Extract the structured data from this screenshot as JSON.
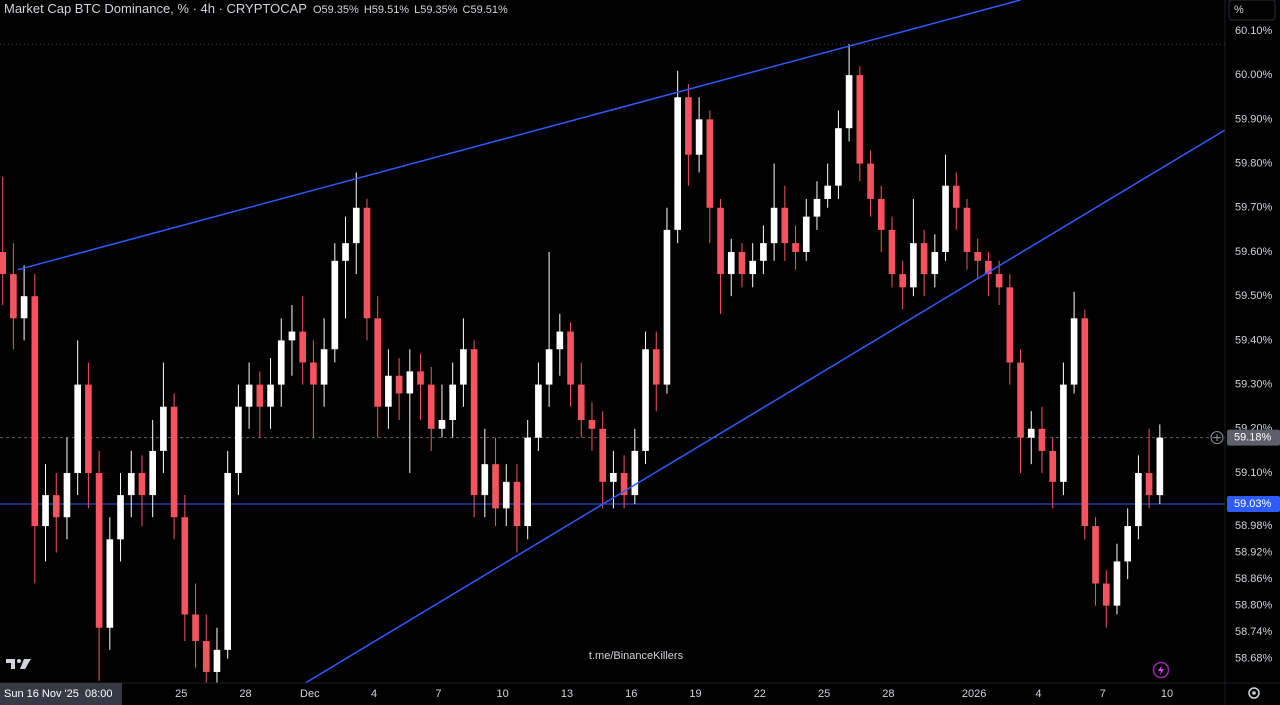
{
  "header": {
    "title": "Market Cap BTC Dominance, % · 4h · CRYPTOCAP",
    "ohlc": [
      {
        "label": "O",
        "value": "59.35%"
      },
      {
        "label": "H",
        "value": "59.51%"
      },
      {
        "label": "L",
        "value": "59.35%"
      },
      {
        "label": "C",
        "value": "59.51%"
      }
    ]
  },
  "scale_button": "%",
  "watermark": "t.me/BinanceKillers",
  "time_label": "Sun 16 Nov '25  08:00",
  "chart_data": {
    "type": "candlestick",
    "up_color": "#ffffff",
    "down_color": "#f7525f",
    "xlim": [
      "2025-11-16T13:00",
      "2026-01-12T17:00"
    ],
    "ylim": [
      58.625,
      60.17
    ],
    "yticks": [
      {
        "value": 60.1,
        "label": "60.10%"
      },
      {
        "value": 60.0,
        "label": "60.00%"
      },
      {
        "value": 59.9,
        "label": "59.90%"
      },
      {
        "value": 59.8,
        "label": "59.80%"
      },
      {
        "value": 59.7,
        "label": "59.70%"
      },
      {
        "value": 59.6,
        "label": "59.60%"
      },
      {
        "value": 59.5,
        "label": "59.50%"
      },
      {
        "value": 59.4,
        "label": "59.40%"
      },
      {
        "value": 59.3,
        "label": "59.30%"
      },
      {
        "value": 59.2,
        "label": "59.20%"
      },
      {
        "value": 59.1,
        "label": "59.10%"
      },
      {
        "value": 58.98,
        "label": "58.98%"
      },
      {
        "value": 58.92,
        "label": "58.92%"
      },
      {
        "value": 58.86,
        "label": "58.86%"
      },
      {
        "value": 58.8,
        "label": "58.80%"
      },
      {
        "value": 58.74,
        "label": "58.74%"
      },
      {
        "value": 58.68,
        "label": "58.68%"
      }
    ],
    "xticks": [
      {
        "value": "2025-11-25T00:00",
        "label": "25"
      },
      {
        "value": "2025-11-28T00:00",
        "label": "28"
      },
      {
        "value": "2025-12-01T00:00",
        "label": "Dec"
      },
      {
        "value": "2025-12-04T00:00",
        "label": "4"
      },
      {
        "value": "2025-12-07T00:00",
        "label": "7"
      },
      {
        "value": "2025-12-10T00:00",
        "label": "10"
      },
      {
        "value": "2025-12-13T00:00",
        "label": "13"
      },
      {
        "value": "2025-12-16T00:00",
        "label": "16"
      },
      {
        "value": "2025-12-19T00:00",
        "label": "19"
      },
      {
        "value": "2025-12-22T00:00",
        "label": "22"
      },
      {
        "value": "2025-12-25T00:00",
        "label": "25"
      },
      {
        "value": "2025-12-28T00:00",
        "label": "28"
      },
      {
        "value": "2026-01-01T00:00",
        "label": "2026"
      },
      {
        "value": "2026-01-04T00:00",
        "label": "4"
      },
      {
        "value": "2026-01-07T00:00",
        "label": "7"
      },
      {
        "value": "2026-01-10T00:00",
        "label": "10"
      }
    ],
    "x": [
      "2025-11-16T16:00",
      "2025-11-17T04:00",
      "2025-11-17T16:00",
      "2025-11-18T04:00",
      "2025-11-18T16:00",
      "2025-11-19T04:00",
      "2025-11-19T16:00",
      "2025-11-20T04:00",
      "2025-11-20T16:00",
      "2025-11-21T04:00",
      "2025-11-21T16:00",
      "2025-11-22T04:00",
      "2025-11-22T16:00",
      "2025-11-23T04:00",
      "2025-11-23T16:00",
      "2025-11-24T04:00",
      "2025-11-24T16:00",
      "2025-11-25T04:00",
      "2025-11-25T16:00",
      "2025-11-26T04:00",
      "2025-11-26T16:00",
      "2025-11-27T04:00",
      "2025-11-27T16:00",
      "2025-11-28T04:00",
      "2025-11-28T16:00",
      "2025-11-29T04:00",
      "2025-11-29T16:00",
      "2025-11-30T04:00",
      "2025-11-30T16:00",
      "2025-12-01T04:00",
      "2025-12-01T16:00",
      "2025-12-02T04:00",
      "2025-12-02T16:00",
      "2025-12-03T04:00",
      "2025-12-03T16:00",
      "2025-12-04T04:00",
      "2025-12-04T16:00",
      "2025-12-05T04:00",
      "2025-12-05T16:00",
      "2025-12-06T04:00",
      "2025-12-06T16:00",
      "2025-12-07T04:00",
      "2025-12-07T16:00",
      "2025-12-08T04:00",
      "2025-12-08T16:00",
      "2025-12-09T04:00",
      "2025-12-09T16:00",
      "2025-12-10T04:00",
      "2025-12-10T16:00",
      "2025-12-11T04:00",
      "2025-12-11T16:00",
      "2025-12-12T04:00",
      "2025-12-12T16:00",
      "2025-12-13T04:00",
      "2025-12-13T16:00",
      "2025-12-14T04:00",
      "2025-12-14T16:00",
      "2025-12-15T04:00",
      "2025-12-15T16:00",
      "2025-12-16T04:00",
      "2025-12-16T16:00",
      "2025-12-17T04:00",
      "2025-12-17T16:00",
      "2025-12-18T04:00",
      "2025-12-18T16:00",
      "2025-12-19T04:00",
      "2025-12-19T16:00",
      "2025-12-20T04:00",
      "2025-12-20T16:00",
      "2025-12-21T04:00",
      "2025-12-21T16:00",
      "2025-12-22T04:00",
      "2025-12-22T16:00",
      "2025-12-23T04:00",
      "2025-12-23T16:00",
      "2025-12-24T04:00",
      "2025-12-24T16:00",
      "2025-12-25T04:00",
      "2025-12-25T16:00",
      "2025-12-26T04:00",
      "2025-12-26T16:00",
      "2025-12-27T04:00",
      "2025-12-27T16:00",
      "2025-12-28T04:00",
      "2025-12-28T16:00",
      "2025-12-29T04:00",
      "2025-12-29T16:00",
      "2025-12-30T04:00",
      "2025-12-30T16:00",
      "2025-12-31T04:00",
      "2025-12-31T16:00",
      "2026-01-01T04:00",
      "2026-01-01T16:00",
      "2026-01-02T04:00",
      "2026-01-02T16:00",
      "2026-01-03T04:00",
      "2026-01-03T16:00",
      "2026-01-04T04:00",
      "2026-01-04T16:00",
      "2026-01-05T04:00",
      "2026-01-05T16:00",
      "2026-01-06T04:00",
      "2026-01-06T16:00",
      "2026-01-07T04:00",
      "2026-01-07T16:00",
      "2026-01-08T04:00",
      "2026-01-08T16:00",
      "2026-01-09T04:00",
      "2026-01-09T16:00"
    ],
    "ohlc": [
      [
        59.6,
        59.77,
        59.48,
        59.55
      ],
      [
        59.55,
        59.62,
        59.38,
        59.45
      ],
      [
        59.45,
        59.57,
        59.4,
        59.5
      ],
      [
        59.5,
        59.55,
        58.85,
        58.98
      ],
      [
        58.98,
        59.12,
        58.9,
        59.05
      ],
      [
        59.05,
        59.1,
        58.92,
        59.0
      ],
      [
        59.0,
        59.18,
        58.95,
        59.1
      ],
      [
        59.1,
        59.4,
        59.05,
        59.3
      ],
      [
        59.3,
        59.35,
        59.02,
        59.1
      ],
      [
        59.1,
        59.15,
        58.63,
        58.75
      ],
      [
        58.75,
        59.0,
        58.7,
        58.95
      ],
      [
        58.95,
        59.1,
        58.9,
        59.05
      ],
      [
        59.05,
        59.15,
        59.0,
        59.1
      ],
      [
        59.1,
        59.14,
        58.98,
        59.05
      ],
      [
        59.05,
        59.22,
        59.0,
        59.15
      ],
      [
        59.15,
        59.35,
        59.1,
        59.25
      ],
      [
        59.25,
        59.28,
        58.95,
        59.0
      ],
      [
        59.0,
        59.05,
        58.72,
        58.78
      ],
      [
        58.78,
        58.85,
        58.66,
        58.72
      ],
      [
        58.72,
        58.78,
        58.6,
        58.65
      ],
      [
        58.65,
        58.75,
        58.62,
        58.7
      ],
      [
        58.7,
        59.15,
        58.68,
        59.1
      ],
      [
        59.1,
        59.3,
        59.05,
        59.25
      ],
      [
        59.25,
        59.35,
        59.2,
        59.3
      ],
      [
        59.3,
        59.33,
        59.18,
        59.25
      ],
      [
        59.25,
        59.36,
        59.2,
        59.3
      ],
      [
        59.3,
        59.45,
        59.25,
        59.4
      ],
      [
        59.4,
        59.48,
        59.32,
        59.42
      ],
      [
        59.42,
        59.5,
        59.3,
        59.35
      ],
      [
        59.35,
        59.4,
        59.18,
        59.3
      ],
      [
        59.3,
        59.45,
        59.25,
        59.38
      ],
      [
        59.38,
        59.62,
        59.35,
        59.58
      ],
      [
        59.58,
        59.68,
        59.45,
        59.62
      ],
      [
        59.62,
        59.78,
        59.55,
        59.7
      ],
      [
        59.7,
        59.72,
        59.4,
        59.45
      ],
      [
        59.45,
        59.5,
        59.18,
        59.25
      ],
      [
        59.25,
        59.38,
        59.2,
        59.32
      ],
      [
        59.32,
        59.36,
        59.22,
        59.28
      ],
      [
        59.28,
        59.38,
        59.1,
        59.33
      ],
      [
        59.33,
        59.37,
        59.22,
        59.3
      ],
      [
        59.3,
        59.34,
        59.15,
        59.2
      ],
      [
        59.2,
        59.3,
        59.18,
        59.22
      ],
      [
        59.22,
        59.35,
        59.18,
        59.3
      ],
      [
        59.3,
        59.45,
        59.25,
        59.38
      ],
      [
        59.38,
        59.4,
        59.0,
        59.05
      ],
      [
        59.05,
        59.2,
        59.0,
        59.12
      ],
      [
        59.12,
        59.18,
        58.98,
        59.02
      ],
      [
        59.02,
        59.12,
        58.98,
        59.08
      ],
      [
        59.08,
        59.12,
        58.92,
        58.98
      ],
      [
        58.98,
        59.22,
        58.95,
        59.18
      ],
      [
        59.18,
        59.35,
        59.15,
        59.3
      ],
      [
        59.3,
        59.6,
        59.25,
        59.38
      ],
      [
        59.38,
        59.46,
        59.32,
        59.42
      ],
      [
        59.42,
        59.44,
        59.25,
        59.3
      ],
      [
        59.3,
        59.35,
        59.18,
        59.22
      ],
      [
        59.22,
        59.26,
        59.15,
        59.2
      ],
      [
        59.2,
        59.24,
        59.02,
        59.08
      ],
      [
        59.08,
        59.15,
        59.02,
        59.1
      ],
      [
        59.1,
        59.14,
        59.02,
        59.05
      ],
      [
        59.05,
        59.2,
        59.03,
        59.15
      ],
      [
        59.15,
        59.42,
        59.12,
        59.38
      ],
      [
        59.38,
        59.42,
        59.24,
        59.3
      ],
      [
        59.3,
        59.7,
        59.28,
        59.65
      ],
      [
        59.65,
        60.01,
        59.62,
        59.95
      ],
      [
        59.95,
        59.98,
        59.75,
        59.82
      ],
      [
        59.82,
        59.95,
        59.78,
        59.9
      ],
      [
        59.9,
        59.92,
        59.62,
        59.7
      ],
      [
        59.7,
        59.72,
        59.46,
        59.55
      ],
      [
        59.55,
        59.63,
        59.5,
        59.6
      ],
      [
        59.6,
        59.62,
        59.52,
        59.55
      ],
      [
        59.55,
        59.62,
        59.52,
        59.58
      ],
      [
        59.58,
        59.66,
        59.55,
        59.62
      ],
      [
        59.62,
        59.8,
        59.58,
        59.7
      ],
      [
        59.7,
        59.75,
        59.58,
        59.62
      ],
      [
        59.62,
        59.66,
        59.56,
        59.6
      ],
      [
        59.6,
        59.72,
        59.58,
        59.68
      ],
      [
        59.68,
        59.76,
        59.65,
        59.72
      ],
      [
        59.72,
        59.8,
        59.7,
        59.75
      ],
      [
        59.75,
        59.92,
        59.72,
        59.88
      ],
      [
        59.88,
        60.07,
        59.85,
        60.0
      ],
      [
        60.0,
        60.02,
        59.76,
        59.8
      ],
      [
        59.8,
        59.83,
        59.68,
        59.72
      ],
      [
        59.72,
        59.75,
        59.6,
        59.65
      ],
      [
        59.65,
        59.68,
        59.52,
        59.55
      ],
      [
        59.55,
        59.58,
        59.47,
        59.52
      ],
      [
        59.52,
        59.72,
        59.5,
        59.62
      ],
      [
        59.62,
        59.65,
        59.5,
        59.55
      ],
      [
        59.55,
        59.64,
        59.52,
        59.6
      ],
      [
        59.6,
        59.82,
        59.58,
        59.75
      ],
      [
        59.75,
        59.78,
        59.65,
        59.7
      ],
      [
        59.7,
        59.72,
        59.56,
        59.6
      ],
      [
        59.6,
        59.63,
        59.54,
        59.58
      ],
      [
        59.58,
        59.6,
        59.5,
        59.55
      ],
      [
        59.55,
        59.58,
        59.48,
        59.52
      ],
      [
        59.52,
        59.55,
        59.3,
        59.35
      ],
      [
        59.35,
        59.38,
        59.1,
        59.18
      ],
      [
        59.18,
        59.24,
        59.12,
        59.2
      ],
      [
        59.2,
        59.25,
        59.1,
        59.15
      ],
      [
        59.15,
        59.18,
        59.02,
        59.08
      ],
      [
        59.08,
        59.35,
        59.05,
        59.3
      ],
      [
        59.3,
        59.51,
        59.28,
        59.45
      ],
      [
        59.45,
        59.47,
        58.95,
        58.98
      ],
      [
        58.98,
        59.0,
        58.8,
        58.85
      ],
      [
        58.85,
        58.88,
        58.75,
        58.8
      ],
      [
        58.8,
        58.94,
        58.78,
        58.9
      ],
      [
        58.9,
        59.02,
        58.86,
        58.98
      ],
      [
        58.98,
        59.14,
        58.95,
        59.1
      ],
      [
        59.1,
        59.2,
        59.02,
        59.05
      ],
      [
        59.05,
        59.21,
        59.03,
        59.18
      ]
    ],
    "price_lines": [
      {
        "value": 60.07,
        "style": "dotted",
        "color": "#4a4d55"
      },
      {
        "value": 59.18,
        "style": "dashed",
        "color": "#5d606b",
        "label": "59.18%"
      },
      {
        "value": 59.03,
        "style": "solid",
        "color": "#2e5bff",
        "label": "59.03%"
      }
    ],
    "trend_lines": [
      {
        "color": "#2e5bff",
        "points": [
          [
            "2025-11-17T09:00",
            59.56
          ],
          [
            "2026-01-03T04:00",
            60.17
          ]
        ]
      },
      {
        "color": "#2e5bff",
        "points": [
          [
            "2025-11-30T19:00",
            58.625
          ],
          [
            "2026-01-12T17:00",
            59.876
          ]
        ]
      }
    ]
  }
}
